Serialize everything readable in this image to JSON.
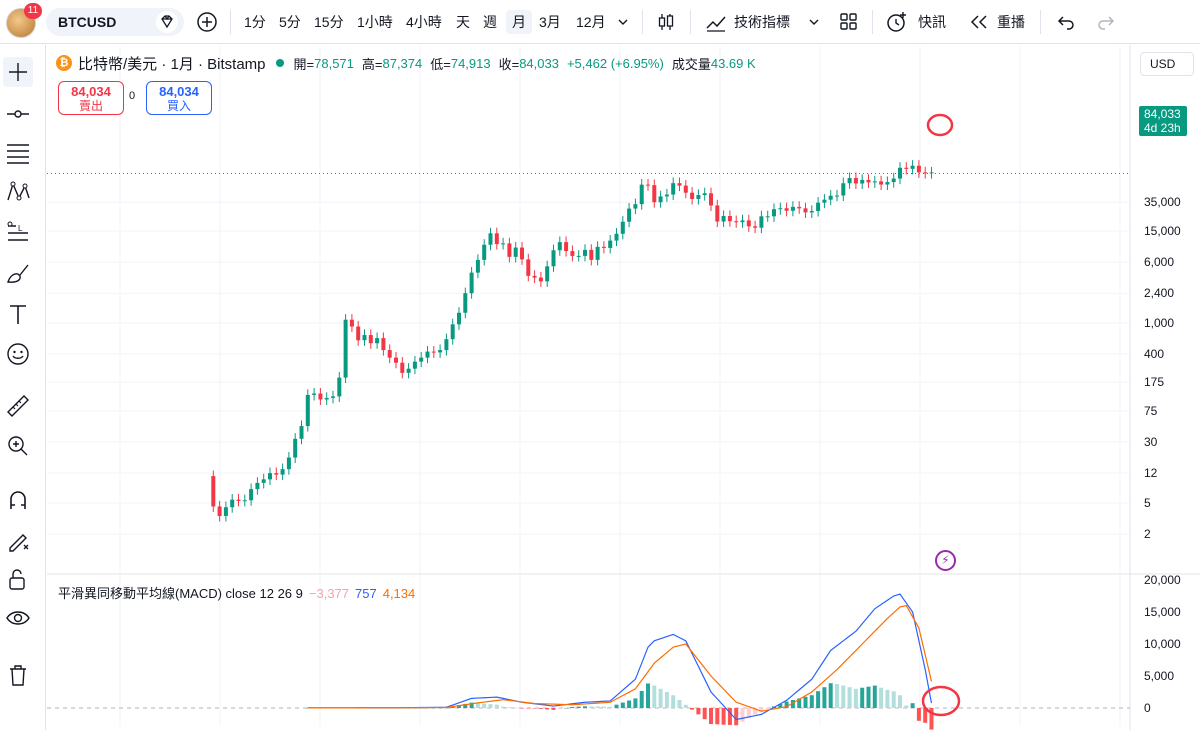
{
  "toolbar": {
    "notifications": "11",
    "symbol": "BTCUSD",
    "intervals": [
      "1分",
      "5分",
      "15分",
      "1小時",
      "4小時",
      "天",
      "週",
      "月",
      "3月",
      "12月"
    ],
    "active_interval": "月",
    "indicators_label": "技術指標",
    "alert_label": "快訊",
    "replay_label": "重播"
  },
  "legend": {
    "coin": "₿",
    "title": "比特幣/美元 · 1月 · Bitstamp",
    "open_label": "開=",
    "open": "78,571",
    "high_label": "高=",
    "high": "87,374",
    "low_label": "低=",
    "low": "74,913",
    "close_label": "收=",
    "close": "84,033",
    "change": "+5,462 (+6.95%)",
    "volume_label": "成交量",
    "volume": "43.69 K"
  },
  "trade": {
    "sell_price": "84,034",
    "sell_label": "賣出",
    "spread": "0",
    "buy_price": "84,034",
    "buy_label": "買入"
  },
  "currency": "USD",
  "price_tag": {
    "price": "84,033",
    "countdown": "4d 23h"
  },
  "macd_legend": {
    "name": "平滑異同移動平均線(MACD) close 12 26 9",
    "hist": "−3,377",
    "macd": "757",
    "signal": "4,134"
  },
  "colors": {
    "up": "#089981",
    "down": "#f23645",
    "macd": "#2962ff",
    "signal": "#ff6d00",
    "annotation": "#f23645"
  },
  "chart_data": [
    {
      "type": "candlestick",
      "title": "",
      "scale": "log",
      "y_ticks": [
        35000,
        15000,
        6000,
        2400,
        1000,
        400,
        175,
        75,
        30,
        12,
        5,
        2
      ],
      "y_tick_labels": [
        "35,000",
        "15,000",
        "6,000",
        "2,400",
        "1,000",
        "400",
        "175",
        "75",
        "30",
        "12",
        "5",
        "2"
      ],
      "last_price": 84033,
      "approx_monthly_close_path": [
        [
          0,
          11
        ],
        [
          1,
          4.5
        ],
        [
          2,
          3.4
        ],
        [
          3,
          4.4
        ],
        [
          4,
          5.5
        ],
        [
          5,
          5.3
        ],
        [
          6,
          5.4
        ],
        [
          7,
          7.5
        ],
        [
          8,
          9
        ],
        [
          9,
          10
        ],
        [
          10,
          12
        ],
        [
          11,
          11.5
        ],
        [
          12,
          13.5
        ],
        [
          13,
          19
        ],
        [
          14,
          33
        ],
        [
          15,
          48
        ],
        [
          16,
          120
        ],
        [
          17,
          125
        ],
        [
          18,
          105
        ],
        [
          19,
          110
        ],
        [
          20,
          115
        ],
        [
          21,
          200
        ],
        [
          22,
          1100
        ],
        [
          23,
          900
        ],
        [
          24,
          600
        ],
        [
          25,
          700
        ],
        [
          26,
          550
        ],
        [
          27,
          640
        ],
        [
          28,
          450
        ],
        [
          29,
          360
        ],
        [
          30,
          310
        ],
        [
          31,
          230
        ],
        [
          32,
          260
        ],
        [
          33,
          320
        ],
        [
          34,
          360
        ],
        [
          35,
          430
        ],
        [
          36,
          420
        ],
        [
          37,
          450
        ],
        [
          38,
          620
        ],
        [
          39,
          960
        ],
        [
          40,
          1350
        ],
        [
          41,
          2400
        ],
        [
          42,
          4400
        ],
        [
          43,
          6400
        ],
        [
          44,
          10000
        ],
        [
          45,
          14000
        ],
        [
          46,
          10200
        ],
        [
          47,
          10400
        ],
        [
          48,
          7000
        ],
        [
          49,
          9200
        ],
        [
          50,
          6500
        ],
        [
          51,
          4000
        ],
        [
          52,
          3800
        ],
        [
          53,
          3400
        ],
        [
          54,
          5300
        ],
        [
          55,
          8500
        ],
        [
          56,
          10800
        ],
        [
          57,
          8300
        ],
        [
          58,
          7200
        ],
        [
          59,
          7200
        ],
        [
          60,
          8600
        ],
        [
          61,
          6400
        ],
        [
          62,
          9400
        ],
        [
          63,
          9100
        ],
        [
          64,
          11300
        ],
        [
          65,
          13800
        ],
        [
          66,
          19700
        ],
        [
          67,
          29000
        ],
        [
          68,
          33000
        ],
        [
          69,
          58700
        ],
        [
          70,
          57800
        ],
        [
          71,
          35000
        ],
        [
          72,
          41500
        ],
        [
          73,
          43800
        ],
        [
          74,
          61300
        ],
        [
          75,
          57000
        ],
        [
          76,
          46300
        ],
        [
          77,
          38500
        ],
        [
          78,
          43200
        ],
        [
          79,
          45500
        ],
        [
          80,
          31800
        ],
        [
          81,
          19800
        ],
        [
          82,
          23300
        ],
        [
          83,
          20000
        ],
        [
          84,
          19400
        ],
        [
          85,
          20500
        ],
        [
          86,
          17200
        ],
        [
          87,
          16500
        ],
        [
          88,
          23100
        ],
        [
          89,
          23100
        ],
        [
          90,
          28500
        ],
        [
          91,
          29300
        ],
        [
          92,
          27200
        ],
        [
          93,
          30500
        ],
        [
          94,
          29200
        ],
        [
          95,
          25900
        ],
        [
          96,
          27000
        ],
        [
          97,
          34500
        ],
        [
          98,
          37700
        ],
        [
          99,
          42300
        ],
        [
          100,
          42600
        ],
        [
          101,
          61100
        ],
        [
          102,
          71300
        ],
        [
          103,
          60700
        ],
        [
          104,
          67500
        ],
        [
          105,
          62700
        ],
        [
          106,
          64600
        ],
        [
          107,
          58900
        ],
        [
          108,
          63300
        ],
        [
          109,
          70200
        ],
        [
          110,
          96400
        ],
        [
          111,
          93400
        ],
        [
          112,
          102400
        ],
        [
          113,
          84300
        ],
        [
          114,
          82500
        ],
        [
          115,
          84033
        ]
      ],
      "annotations": [
        "red circle around latest candles"
      ]
    },
    {
      "type": "macd",
      "parameters": "close 12 26 9",
      "y_ticks": [
        20000,
        15000,
        10000,
        5000,
        0
      ],
      "y_tick_labels": [
        "20,000",
        "15,000",
        "10,000",
        "5,000",
        "0"
      ],
      "macd_line": [
        [
          0,
          0
        ],
        [
          20,
          30
        ],
        [
          30,
          40
        ],
        [
          38,
          120
        ],
        [
          42,
          1500
        ],
        [
          46,
          1700
        ],
        [
          50,
          900
        ],
        [
          55,
          300
        ],
        [
          60,
          900
        ],
        [
          64,
          1100
        ],
        [
          68,
          4500
        ],
        [
          70,
          9500
        ],
        [
          71,
          10500
        ],
        [
          74,
          11500
        ],
        [
          76,
          10500
        ],
        [
          80,
          2500
        ],
        [
          84,
          -1800
        ],
        [
          88,
          -1000
        ],
        [
          92,
          1200
        ],
        [
          96,
          4500
        ],
        [
          99,
          9000
        ],
        [
          101,
          10500
        ],
        [
          103,
          12000
        ],
        [
          106,
          15500
        ],
        [
          109,
          17500
        ],
        [
          110,
          17800
        ],
        [
          112,
          15000
        ],
        [
          114,
          6000
        ],
        [
          115,
          757
        ]
      ],
      "signal_line": [
        [
          0,
          0
        ],
        [
          20,
          20
        ],
        [
          30,
          30
        ],
        [
          38,
          80
        ],
        [
          43,
          800
        ],
        [
          47,
          1300
        ],
        [
          52,
          700
        ],
        [
          58,
          500
        ],
        [
          64,
          900
        ],
        [
          68,
          3000
        ],
        [
          71,
          7000
        ],
        [
          74,
          9500
        ],
        [
          76,
          10000
        ],
        [
          80,
          5000
        ],
        [
          84,
          900
        ],
        [
          88,
          -500
        ],
        [
          92,
          200
        ],
        [
          96,
          2500
        ],
        [
          100,
          6000
        ],
        [
          104,
          10000
        ],
        [
          108,
          14000
        ],
        [
          110,
          15800
        ],
        [
          111,
          16000
        ],
        [
          113,
          12500
        ],
        [
          115,
          4134
        ]
      ],
      "histogram_last": -3377,
      "annotations": [
        "red circle around latest MACD values"
      ]
    }
  ]
}
